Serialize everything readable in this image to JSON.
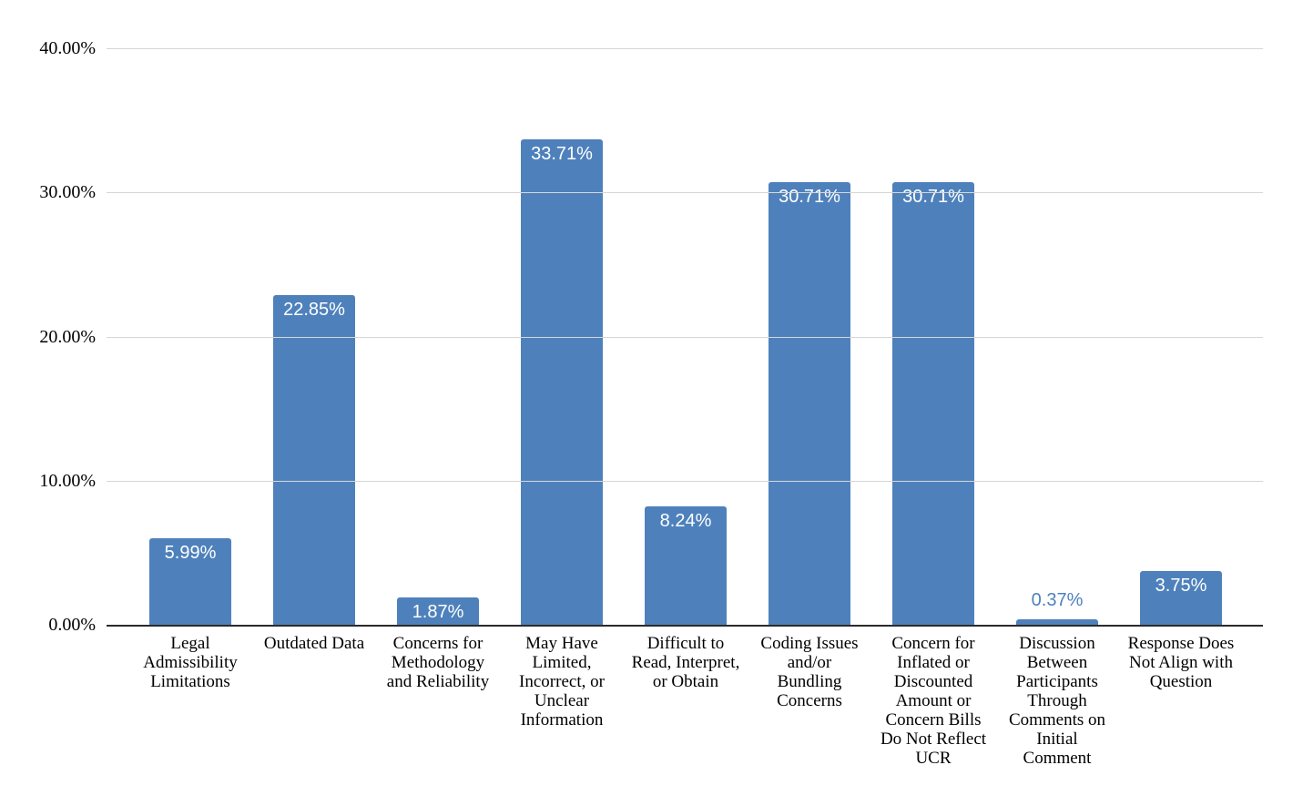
{
  "chart_data": {
    "type": "bar",
    "title": "",
    "xlabel": "",
    "ylabel": "",
    "ylim": [
      0,
      40
    ],
    "grid": true,
    "legend_position": "none",
    "ytick_values": [
      0,
      10,
      20,
      30,
      40
    ],
    "ytick_labels": [
      "0.00%",
      "10.00%",
      "20.00%",
      "30.00%",
      "40.00%"
    ],
    "categories": [
      "Legal\nAdmissibility\nLimitations",
      "Outdated Data",
      "Concerns for\nMethodology\nand Reliability",
      "May Have\nLimited,\nIncorrect, or\nUnclear\nInformation",
      "Difficult to\nRead, Interpret,\nor Obtain",
      "Coding Issues\nand/or\nBundling\nConcerns",
      "Concern for\nInflated or\nDiscounted\nAmount or\nConcern Bills\nDo Not Reflect\nUCR",
      "Discussion\nBetween\nParticipants\nThrough\nComments on\nInitial\nComment",
      "Response Does\nNot Align with\nQuestion"
    ],
    "values": [
      5.99,
      22.85,
      1.87,
      33.71,
      8.24,
      30.71,
      30.71,
      0.37,
      3.75
    ],
    "value_labels": [
      "5.99%",
      "22.85%",
      "1.87%",
      "33.71%",
      "8.24%",
      "30.71%",
      "30.71%",
      "0.37%",
      "3.75%"
    ],
    "colors": {
      "bar": "#4e81bc",
      "value_label_inside": "#ffffff",
      "value_label_outside": "#4e81bc"
    }
  }
}
